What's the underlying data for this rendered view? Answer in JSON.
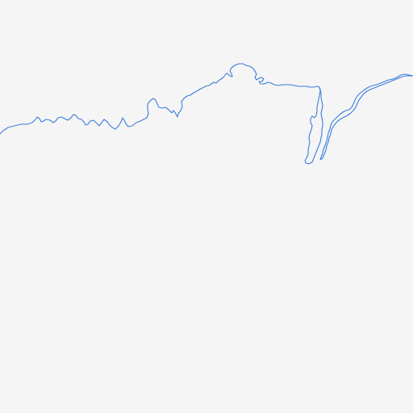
{
  "map": {
    "background_color": "#f5f5f5",
    "coastline_color": "#3b7ddd",
    "features": [
      {
        "name": "main-coastline"
      },
      {
        "name": "west-peninsula-coastline"
      },
      {
        "name": "east-peninsula-coastline"
      }
    ]
  }
}
